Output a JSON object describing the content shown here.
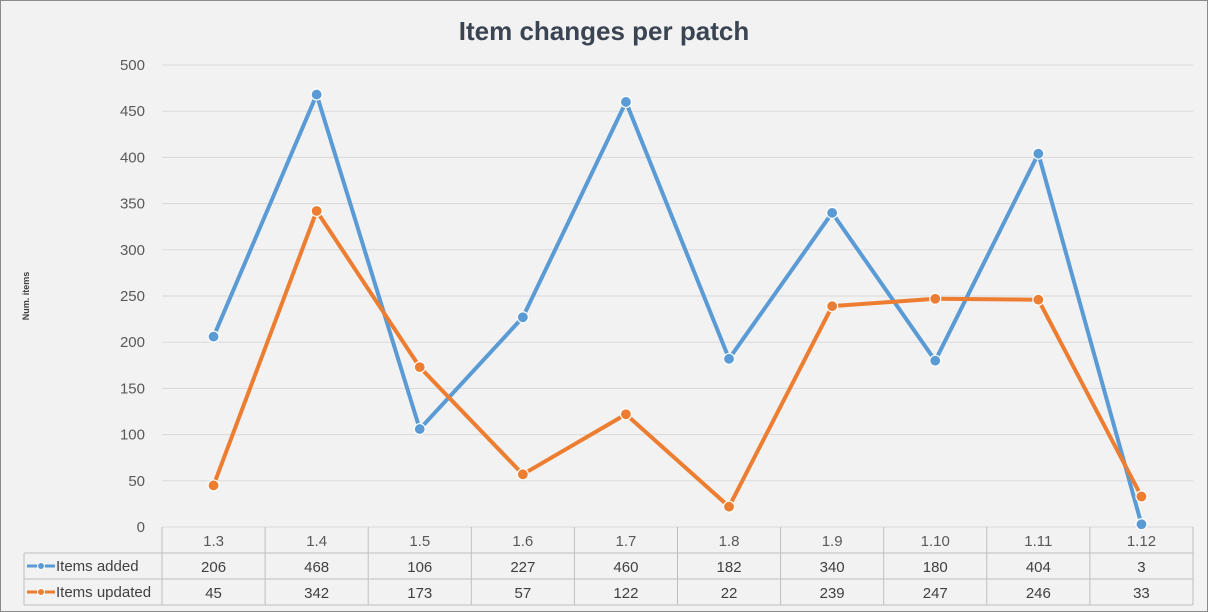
{
  "chart_data": {
    "type": "line",
    "title": "Item changes per patch",
    "ylabel": "Num. items",
    "xlabel": "",
    "categories": [
      "1.3",
      "1.4",
      "1.5",
      "1.6",
      "1.7",
      "1.8",
      "1.9",
      "1.10",
      "1.11",
      "1.12"
    ],
    "ylim": [
      0,
      500
    ],
    "yticks": [
      0,
      50,
      100,
      150,
      200,
      250,
      300,
      350,
      400,
      450,
      500
    ],
    "grid": true,
    "legend": "data-table",
    "series": [
      {
        "name": "Items added",
        "color": "#5b9bd5",
        "values": [
          206,
          468,
          106,
          227,
          460,
          182,
          340,
          180,
          404,
          3
        ]
      },
      {
        "name": "Items updated",
        "color": "#ed7d31",
        "values": [
          45,
          342,
          173,
          57,
          122,
          22,
          239,
          247,
          246,
          33
        ]
      }
    ]
  }
}
